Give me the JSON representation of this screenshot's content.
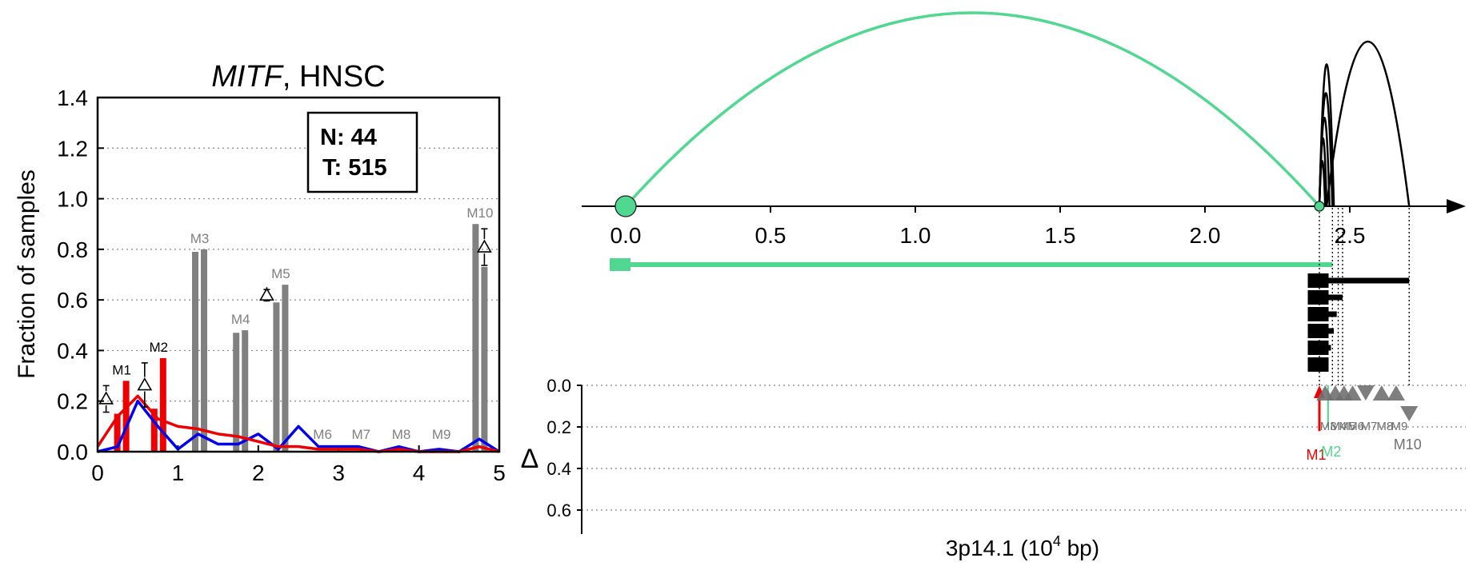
{
  "chart_data": [
    {
      "type": "bar",
      "title": {
        "gene": "MITF",
        "rest": ", HNSC"
      },
      "ylabel": "Fraction of samples",
      "xlim": [
        0,
        5
      ],
      "ylim": [
        0,
        1.4
      ],
      "x_ticks": [
        "0",
        "1",
        "2",
        "3",
        "4",
        "5"
      ],
      "y_ticks": [
        "0.0",
        "0.2",
        "0.4",
        "0.6",
        "0.8",
        "1.0",
        "1.2",
        "1.4"
      ],
      "grid": "y-dotted",
      "legend_box": {
        "n_line": "N: 44",
        "t_line": "T: 515"
      },
      "colors": {
        "normal": "#0000ee",
        "tumor": "#ee0000",
        "grey": "#808080"
      },
      "bars": [
        {
          "label": "M1",
          "x": 0.3,
          "normal": 0.15,
          "tumor": 0.28,
          "color": "#ee0000",
          "label_color": "#000000",
          "delta": true
        },
        {
          "label": "M2",
          "x": 0.76,
          "normal": 0.17,
          "tumor": 0.37,
          "color": "#ee0000",
          "label_color": "#000000",
          "delta": true
        },
        {
          "label": "M3",
          "x": 1.27,
          "normal": 0.79,
          "tumor": 0.8,
          "color": "#808080",
          "label_color": "#808080",
          "delta": false
        },
        {
          "label": "M4",
          "x": 1.78,
          "normal": 0.47,
          "tumor": 0.48,
          "color": "#808080",
          "label_color": "#808080",
          "delta": false
        },
        {
          "label": "M5",
          "x": 2.28,
          "normal": 0.59,
          "tumor": 0.66,
          "color": "#808080",
          "label_color": "#808080",
          "delta": true
        },
        {
          "label": "M6",
          "x": 2.8,
          "normal": 0.0,
          "tumor": 0.0,
          "color": "#808080",
          "label_color": "#808080",
          "delta": false
        },
        {
          "label": "M7",
          "x": 3.28,
          "normal": 0.0,
          "tumor": 0.0,
          "color": "#808080",
          "label_color": "#808080",
          "delta": false
        },
        {
          "label": "M8",
          "x": 3.78,
          "normal": 0.0,
          "tumor": 0.0,
          "color": "#808080",
          "label_color": "#808080",
          "delta": false
        },
        {
          "label": "M9",
          "x": 4.28,
          "normal": 0.0,
          "tumor": 0.0,
          "color": "#808080",
          "label_color": "#808080",
          "delta": false
        },
        {
          "label": "M10",
          "x": 4.76,
          "normal": 0.9,
          "tumor": 0.73,
          "color": "#808080",
          "label_color": "#808080",
          "delta": true
        }
      ],
      "series": [
        {
          "color": "#0000ee",
          "x": [
            0,
            0.25,
            0.5,
            0.75,
            1.0,
            1.25,
            1.5,
            1.75,
            2.0,
            2.25,
            2.5,
            2.75,
            3.0,
            3.25,
            3.5,
            3.75,
            4.0,
            4.25,
            4.5,
            4.75,
            5.0
          ],
          "y": [
            0.0,
            0.02,
            0.2,
            0.1,
            0.01,
            0.07,
            0.03,
            0.03,
            0.07,
            0.01,
            0.1,
            0.02,
            0.02,
            0.02,
            0.0,
            0.02,
            0.0,
            0.01,
            0.0,
            0.05,
            0.0
          ]
        },
        {
          "color": "#ee0000",
          "x": [
            0,
            0.25,
            0.5,
            0.75,
            1.0,
            1.25,
            1.5,
            1.75,
            2.0,
            2.25,
            2.5,
            2.75,
            3.0,
            3.25,
            3.5,
            3.75,
            4.0,
            4.25,
            4.5,
            4.75,
            5.0
          ],
          "y": [
            0.02,
            0.14,
            0.22,
            0.13,
            0.1,
            0.09,
            0.07,
            0.06,
            0.04,
            0.02,
            0.02,
            0.01,
            0.01,
            0.01,
            0.0,
            0.01,
            0.0,
            0.0,
            0.0,
            0.02,
            0.0
          ]
        }
      ]
    },
    {
      "type": "diagram",
      "xlabel": {
        "main": "3p14.1 (10",
        "sup": "4",
        "tail": " bp)"
      },
      "x_ticks": [
        "0.0",
        "0.5",
        "1.0",
        "1.5",
        "2.0",
        "2.5"
      ],
      "xlim": [
        -0.15,
        2.78
      ],
      "arcs": [
        {
          "from": 0.0,
          "to": 2.395,
          "height": 0.94,
          "color": "#50d890"
        },
        {
          "from": 2.395,
          "to": 2.445,
          "height": 0.69,
          "color": "#000000"
        },
        {
          "from": 2.395,
          "to": 2.44,
          "height": 0.55,
          "color": "#000000"
        },
        {
          "from": 2.395,
          "to": 2.43,
          "height": 0.43,
          "color": "#000000"
        },
        {
          "from": 2.395,
          "to": 2.42,
          "height": 0.33,
          "color": "#000000"
        },
        {
          "from": 2.395,
          "to": 2.415,
          "height": 0.22,
          "color": "#000000"
        },
        {
          "from": 2.42,
          "to": 2.705,
          "height": 0.8,
          "color": "#000000"
        }
      ],
      "nodes": [
        {
          "pos": 0.0,
          "size": "large",
          "color": "#50d890"
        },
        {
          "pos": 2.395,
          "size": "small",
          "color": "#50d890"
        }
      ],
      "green_track": {
        "from": 0.0,
        "to": 2.44,
        "color": "#50d890"
      },
      "black_tracks": [
        {
          "from": 2.355,
          "to": 2.705
        },
        {
          "from": 2.355,
          "to": 2.475
        },
        {
          "from": 2.355,
          "to": 2.455
        },
        {
          "from": 2.355,
          "to": 2.445
        },
        {
          "from": 2.355,
          "to": 2.435
        },
        {
          "from": 2.355,
          "to": 2.4
        }
      ],
      "delta_axis": {
        "label": "Δ",
        "ticks": [
          "0.0",
          "0.2",
          "0.4",
          "0.6"
        ],
        "range": [
          0.0,
          0.7
        ]
      },
      "markers": [
        {
          "label": "M1",
          "pos": 2.395,
          "delta": 0.22,
          "kind": "arrow-up",
          "color": "#ee0000"
        },
        {
          "label": "M2",
          "pos": 2.425,
          "delta": 0.2,
          "kind": "line",
          "color": "#50d890"
        },
        {
          "label": "M3",
          "pos": 2.415,
          "delta": 0.02,
          "kind": "tri-up",
          "color": "#707070"
        },
        {
          "label": "M4",
          "pos": 2.45,
          "delta": 0.02,
          "kind": "tri-up",
          "color": "#707070"
        },
        {
          "label": "M5",
          "pos": 2.48,
          "delta": 0.03,
          "kind": "tri-up",
          "color": "#707070"
        },
        {
          "label": "M6",
          "pos": 2.51,
          "delta": 0.01,
          "kind": "tri-up",
          "color": "#707070"
        },
        {
          "label": "M7",
          "pos": 2.555,
          "delta": 0.02,
          "kind": "tri-down",
          "color": "#707070"
        },
        {
          "label": "M8",
          "pos": 2.61,
          "delta": 0.02,
          "kind": "tri-up",
          "color": "#707070"
        },
        {
          "label": "M9",
          "pos": 2.66,
          "delta": 0.02,
          "kind": "tri-up",
          "color": "#707070"
        },
        {
          "label": "M10",
          "pos": 2.705,
          "delta": 0.17,
          "kind": "tri-down",
          "color": "#707070"
        }
      ]
    }
  ]
}
